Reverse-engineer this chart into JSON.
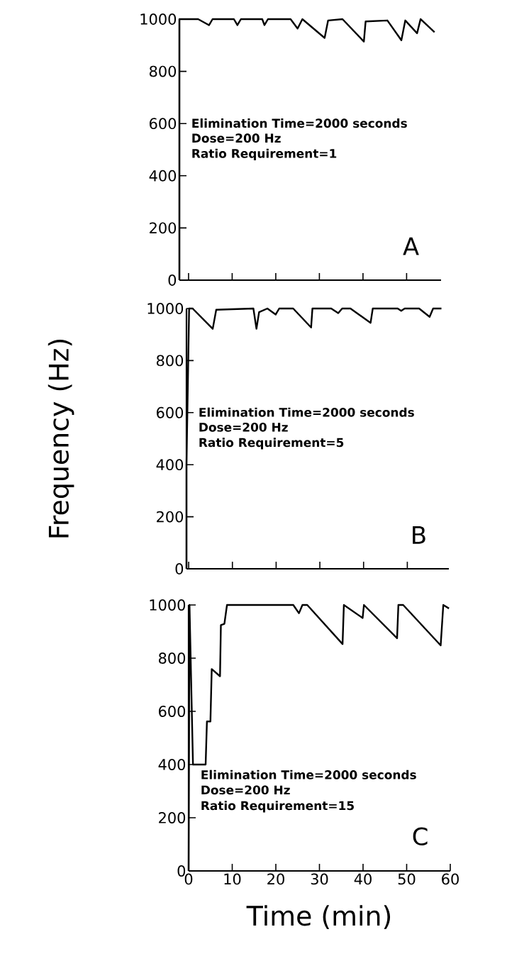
{
  "chart_data": [
    {
      "type": "line",
      "xlim": [
        -2.1,
        57.9
      ],
      "ylim": [
        0,
        1000
      ],
      "xticks": [
        0,
        10,
        20,
        30,
        40,
        50
      ],
      "yticks": [
        0,
        200,
        400,
        600,
        800,
        1000
      ],
      "tick_labels": "y",
      "marker": "none",
      "line_style": "solid",
      "annotations": [
        "Elimination Time=2000 seconds",
        "Dose=200 Hz",
        "Ratio Requirement=1",
        "A"
      ],
      "series": [
        {
          "color": "#000000",
          "x": [
            -2.1,
            -2.1,
            2.2,
            4.7,
            5.5,
            10.4,
            11.2,
            12.0,
            16.9,
            17.4,
            18.2,
            23.4,
            25.0,
            26.1,
            31.2,
            32.0,
            35.3,
            40.2,
            40.6,
            45.6,
            48.8,
            49.7,
            52.4,
            53.2,
            56.4
          ],
          "values": [
            0,
            1000,
            1000,
            977,
            1000,
            1000,
            977,
            1000,
            1000,
            977,
            1000,
            1000,
            964,
            1000,
            928,
            995,
            1000,
            914,
            991,
            995,
            919,
            995,
            946,
            1000,
            950
          ]
        }
      ]
    },
    {
      "type": "line",
      "xlim": [
        -0.5,
        59.5
      ],
      "ylim": [
        0,
        1000
      ],
      "xticks": [
        0,
        10,
        20,
        30,
        40,
        50
      ],
      "yticks": [
        0,
        200,
        400,
        600,
        800,
        1000
      ],
      "tick_labels": "y",
      "marker": "none",
      "line_style": "solid",
      "ylabel": "Frequency (Hz)",
      "annotations": [
        "Elimination Time=2000 seconds",
        "Dose=200 Hz",
        "Ratio Requirement=5",
        "B"
      ],
      "series": [
        {
          "color": "#000000",
          "x": [
            -0.5,
            -0.5,
            0.1,
            0.9,
            5.5,
            6.3,
            14.8,
            15.5,
            16.1,
            18.0,
            19.9,
            20.7,
            23.9,
            28.0,
            28.3,
            32.6,
            34.2,
            35.1,
            37.0,
            41.6,
            42.1,
            47.8,
            48.6,
            49.4,
            52.7,
            55.1,
            55.9,
            57.8
          ],
          "values": [
            0,
            400,
            1000,
            1000,
            922,
            995,
            1000,
            922,
            986,
            1000,
            977,
            1000,
            1000,
            927,
            1000,
            1000,
            982,
            1000,
            1000,
            945,
            1000,
            1000,
            991,
            1000,
            1000,
            968,
            1000,
            1000
          ]
        }
      ]
    },
    {
      "type": "line",
      "xlim": [
        0,
        60
      ],
      "ylim": [
        0,
        1000
      ],
      "xticks": [
        0,
        10,
        20,
        30,
        40,
        50,
        60
      ],
      "yticks": [
        0,
        200,
        400,
        600,
        800,
        1000
      ],
      "marker": "none",
      "line_style": "solid",
      "xlabel": "Time (min)",
      "annotations": [
        "Elimination Time=2000 seconds",
        "Dose=200 Hz",
        "Ratio Requirement=15",
        "C"
      ],
      "series": [
        {
          "color": "#000000",
          "x": [
            0,
            0.2,
            1.0,
            3.9,
            4.2,
            5.0,
            5.3,
            7.2,
            7.4,
            8.2,
            8.8,
            24.0,
            25.3,
            26.1,
            27.2,
            35.3,
            35.6,
            39.9,
            40.2,
            47.8,
            48.1,
            49.2,
            57.8,
            58.4,
            59.7
          ],
          "values": [
            0,
            1000,
            400,
            400,
            562,
            562,
            759,
            732,
            924,
            929,
            1000,
            1000,
            969,
            1000,
            1000,
            853,
            1000,
            951,
            1000,
            875,
            1000,
            1000,
            848,
            1000,
            987
          ]
        }
      ]
    }
  ]
}
